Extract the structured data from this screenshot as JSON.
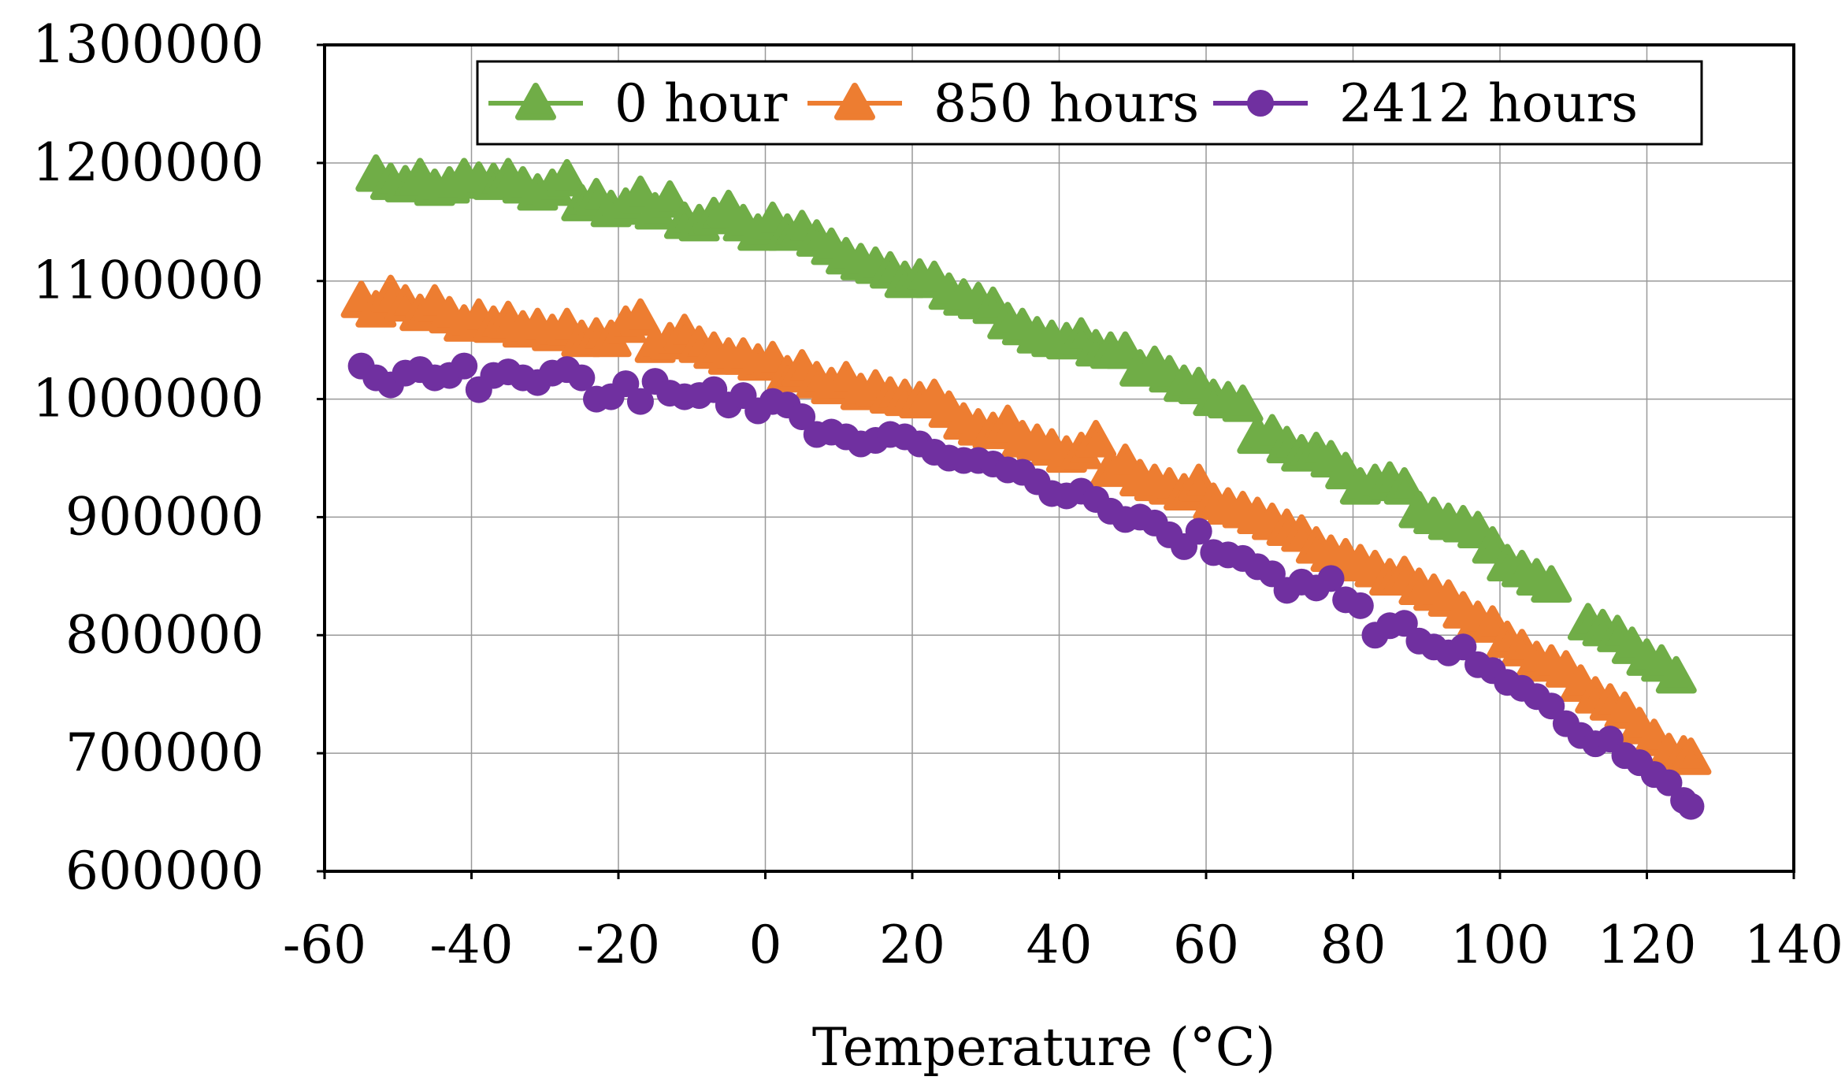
{
  "chart_data": {
    "type": "scatter",
    "title": "",
    "xlabel": "Temperature (°C)",
    "ylabel": "",
    "xlim": [
      -60,
      140
    ],
    "ylim": [
      600000,
      1300000
    ],
    "x_ticks": [
      -60,
      -40,
      -20,
      0,
      20,
      40,
      60,
      80,
      100,
      120,
      140
    ],
    "y_ticks": [
      600000,
      700000,
      800000,
      900000,
      1000000,
      1100000,
      1200000,
      1300000
    ],
    "x_tick_labels": [
      "-60",
      "-40",
      "-20",
      "0",
      "20",
      "40",
      "60",
      "80",
      "100",
      "120",
      "140"
    ],
    "y_tick_labels": [
      "600000",
      "700000",
      "800000",
      "900000",
      "1000000",
      "1100000",
      "1200000",
      "1300000"
    ],
    "grid": true,
    "legend": "top-center, inside plot",
    "series": [
      {
        "name": "0 hour",
        "color": "#70ad47",
        "marker": "triangle-up",
        "points": [
          [
            -53,
            1190000
          ],
          [
            -51,
            1183000
          ],
          [
            -49,
            1181000
          ],
          [
            -47,
            1187000
          ],
          [
            -45,
            1178000
          ],
          [
            -43,
            1180000
          ],
          [
            -41,
            1187000
          ],
          [
            -39,
            1184000
          ],
          [
            -37,
            1183000
          ],
          [
            -35,
            1187000
          ],
          [
            -33,
            1180000
          ],
          [
            -31,
            1174000
          ],
          [
            -29,
            1178000
          ],
          [
            -27,
            1186000
          ],
          [
            -25,
            1165000
          ],
          [
            -23,
            1170000
          ],
          [
            -21,
            1160000
          ],
          [
            -19,
            1162000
          ],
          [
            -17,
            1172000
          ],
          [
            -15,
            1158000
          ],
          [
            -13,
            1168000
          ],
          [
            -11,
            1150000
          ],
          [
            -9,
            1148000
          ],
          [
            -7,
            1154000
          ],
          [
            -5,
            1160000
          ],
          [
            -3,
            1148000
          ],
          [
            -1,
            1140000
          ],
          [
            1,
            1150000
          ],
          [
            3,
            1140000
          ],
          [
            5,
            1143000
          ],
          [
            7,
            1135000
          ],
          [
            9,
            1128000
          ],
          [
            11,
            1120000
          ],
          [
            13,
            1115000
          ],
          [
            15,
            1112000
          ],
          [
            17,
            1108000
          ],
          [
            19,
            1100000
          ],
          [
            21,
            1102000
          ],
          [
            23,
            1100000
          ],
          [
            25,
            1090000
          ],
          [
            27,
            1085000
          ],
          [
            29,
            1082000
          ],
          [
            31,
            1078000
          ],
          [
            33,
            1065000
          ],
          [
            35,
            1060000
          ],
          [
            37,
            1053000
          ],
          [
            39,
            1050000
          ],
          [
            41,
            1048000
          ],
          [
            43,
            1052000
          ],
          [
            45,
            1042000
          ],
          [
            47,
            1040000
          ],
          [
            49,
            1040000
          ],
          [
            51,
            1025000
          ],
          [
            53,
            1028000
          ],
          [
            55,
            1020000
          ],
          [
            57,
            1012000
          ],
          [
            59,
            1010000
          ],
          [
            61,
            1000000
          ],
          [
            63,
            998000
          ],
          [
            65,
            995000
          ],
          [
            67,
            968000
          ],
          [
            69,
            970000
          ],
          [
            71,
            960000
          ],
          [
            73,
            953000
          ],
          [
            75,
            955000
          ],
          [
            77,
            948000
          ],
          [
            79,
            938000
          ],
          [
            81,
            925000
          ],
          [
            83,
            928000
          ],
          [
            85,
            930000
          ],
          [
            87,
            925000
          ],
          [
            89,
            905000
          ],
          [
            91,
            900000
          ],
          [
            93,
            895000
          ],
          [
            95,
            893000
          ],
          [
            97,
            888000
          ],
          [
            99,
            875000
          ],
          [
            101,
            860000
          ],
          [
            103,
            855000
          ],
          [
            105,
            848000
          ],
          [
            107,
            842000
          ],
          [
            112,
            810000
          ],
          [
            114,
            805000
          ],
          [
            116,
            800000
          ],
          [
            118,
            790000
          ],
          [
            120,
            780000
          ],
          [
            122,
            775000
          ],
          [
            124,
            765000
          ]
        ]
      },
      {
        "name": "850 hours",
        "color": "#ed7d31",
        "marker": "triangle-up",
        "points": [
          [
            -55,
            1083000
          ],
          [
            -53,
            1075000
          ],
          [
            -51,
            1088000
          ],
          [
            -49,
            1080000
          ],
          [
            -47,
            1072000
          ],
          [
            -45,
            1080000
          ],
          [
            -43,
            1070000
          ],
          [
            -41,
            1063000
          ],
          [
            -39,
            1068000
          ],
          [
            -37,
            1062000
          ],
          [
            -35,
            1066000
          ],
          [
            -33,
            1058000
          ],
          [
            -31,
            1060000
          ],
          [
            -29,
            1055000
          ],
          [
            -27,
            1060000
          ],
          [
            -25,
            1050000
          ],
          [
            -23,
            1052000
          ],
          [
            -21,
            1050000
          ],
          [
            -19,
            1062000
          ],
          [
            -17,
            1068000
          ],
          [
            -15,
            1045000
          ],
          [
            -13,
            1048000
          ],
          [
            -11,
            1055000
          ],
          [
            -9,
            1045000
          ],
          [
            -7,
            1040000
          ],
          [
            -5,
            1035000
          ],
          [
            -3,
            1035000
          ],
          [
            -1,
            1030000
          ],
          [
            1,
            1032000
          ],
          [
            3,
            1020000
          ],
          [
            5,
            1025000
          ],
          [
            7,
            1015000
          ],
          [
            9,
            1010000
          ],
          [
            11,
            1015000
          ],
          [
            13,
            1005000
          ],
          [
            15,
            1008000
          ],
          [
            17,
            1002000
          ],
          [
            19,
            1000000
          ],
          [
            21,
            998000
          ],
          [
            23,
            1000000
          ],
          [
            25,
            990000
          ],
          [
            27,
            980000
          ],
          [
            29,
            975000
          ],
          [
            31,
            972000
          ],
          [
            33,
            978000
          ],
          [
            35,
            965000
          ],
          [
            37,
            962000
          ],
          [
            39,
            958000
          ],
          [
            41,
            952000
          ],
          [
            43,
            955000
          ],
          [
            45,
            965000
          ],
          [
            47,
            940000
          ],
          [
            49,
            945000
          ],
          [
            51,
            932000
          ],
          [
            53,
            928000
          ],
          [
            55,
            925000
          ],
          [
            57,
            920000
          ],
          [
            59,
            928000
          ],
          [
            61,
            912000
          ],
          [
            63,
            908000
          ],
          [
            65,
            905000
          ],
          [
            67,
            900000
          ],
          [
            69,
            895000
          ],
          [
            71,
            890000
          ],
          [
            73,
            885000
          ],
          [
            75,
            875000
          ],
          [
            77,
            868000
          ],
          [
            79,
            865000
          ],
          [
            81,
            860000
          ],
          [
            83,
            855000
          ],
          [
            85,
            848000
          ],
          [
            87,
            850000
          ],
          [
            89,
            840000
          ],
          [
            91,
            835000
          ],
          [
            93,
            830000
          ],
          [
            95,
            820000
          ],
          [
            97,
            812000
          ],
          [
            99,
            808000
          ],
          [
            101,
            795000
          ],
          [
            103,
            788000
          ],
          [
            105,
            778000
          ],
          [
            107,
            775000
          ],
          [
            109,
            770000
          ],
          [
            111,
            758000
          ],
          [
            113,
            748000
          ],
          [
            115,
            742000
          ],
          [
            117,
            735000
          ],
          [
            119,
            722000
          ],
          [
            121,
            712000
          ],
          [
            123,
            700000
          ],
          [
            125,
            698000
          ],
          [
            126,
            696000
          ]
        ]
      },
      {
        "name": "2412 hours",
        "color": "#7030a0",
        "marker": "circle",
        "points": [
          [
            -55,
            1028000
          ],
          [
            -53,
            1018000
          ],
          [
            -51,
            1012000
          ],
          [
            -49,
            1022000
          ],
          [
            -47,
            1025000
          ],
          [
            -45,
            1018000
          ],
          [
            -43,
            1020000
          ],
          [
            -41,
            1028000
          ],
          [
            -39,
            1008000
          ],
          [
            -37,
            1020000
          ],
          [
            -35,
            1023000
          ],
          [
            -33,
            1018000
          ],
          [
            -31,
            1014000
          ],
          [
            -29,
            1022000
          ],
          [
            -27,
            1025000
          ],
          [
            -25,
            1018000
          ],
          [
            -23,
            1000000
          ],
          [
            -21,
            1002000
          ],
          [
            -19,
            1013000
          ],
          [
            -17,
            998000
          ],
          [
            -15,
            1015000
          ],
          [
            -13,
            1005000
          ],
          [
            -11,
            1002000
          ],
          [
            -9,
            1003000
          ],
          [
            -7,
            1008000
          ],
          [
            -5,
            995000
          ],
          [
            -3,
            1003000
          ],
          [
            -1,
            990000
          ],
          [
            1,
            998000
          ],
          [
            3,
            995000
          ],
          [
            5,
            985000
          ],
          [
            7,
            970000
          ],
          [
            9,
            972000
          ],
          [
            11,
            968000
          ],
          [
            13,
            962000
          ],
          [
            15,
            965000
          ],
          [
            17,
            970000
          ],
          [
            19,
            968000
          ],
          [
            21,
            962000
          ],
          [
            23,
            955000
          ],
          [
            25,
            950000
          ],
          [
            27,
            948000
          ],
          [
            29,
            948000
          ],
          [
            31,
            945000
          ],
          [
            33,
            940000
          ],
          [
            35,
            938000
          ],
          [
            37,
            930000
          ],
          [
            39,
            920000
          ],
          [
            41,
            918000
          ],
          [
            43,
            922000
          ],
          [
            45,
            915000
          ],
          [
            47,
            905000
          ],
          [
            49,
            898000
          ],
          [
            51,
            900000
          ],
          [
            53,
            895000
          ],
          [
            55,
            885000
          ],
          [
            57,
            875000
          ],
          [
            59,
            888000
          ],
          [
            61,
            870000
          ],
          [
            63,
            868000
          ],
          [
            65,
            865000
          ],
          [
            67,
            858000
          ],
          [
            69,
            852000
          ],
          [
            71,
            838000
          ],
          [
            73,
            845000
          ],
          [
            75,
            840000
          ],
          [
            77,
            848000
          ],
          [
            79,
            830000
          ],
          [
            81,
            825000
          ],
          [
            83,
            800000
          ],
          [
            85,
            808000
          ],
          [
            87,
            810000
          ],
          [
            89,
            795000
          ],
          [
            91,
            790000
          ],
          [
            93,
            785000
          ],
          [
            95,
            790000
          ],
          [
            97,
            775000
          ],
          [
            99,
            770000
          ],
          [
            101,
            760000
          ],
          [
            103,
            755000
          ],
          [
            105,
            748000
          ],
          [
            107,
            740000
          ],
          [
            109,
            725000
          ],
          [
            111,
            715000
          ],
          [
            113,
            708000
          ],
          [
            115,
            712000
          ],
          [
            117,
            698000
          ],
          [
            119,
            692000
          ],
          [
            121,
            682000
          ],
          [
            123,
            675000
          ],
          [
            125,
            660000
          ],
          [
            126,
            655000
          ]
        ]
      }
    ]
  }
}
